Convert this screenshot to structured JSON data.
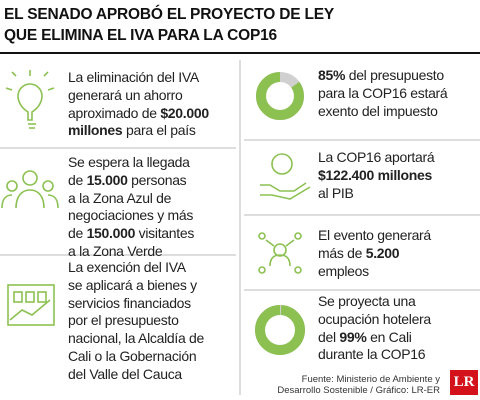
{
  "title": [
    "EL SENADO APROBÓ EL PROYECTO DE LEY",
    "QUE ELIMINA EL IVA PARA LA COP16"
  ],
  "left": [
    {
      "lines": [
        [
          {
            "text": "La eliminación del IVA"
          }
        ],
        [
          {
            "text": "generará un ahorro"
          }
        ],
        [
          {
            "text": "aproximado de "
          },
          {
            "text": "$20.000",
            "bold": true
          }
        ],
        [
          {
            "text": "millones",
            "bold": true
          },
          {
            "text": " para el país"
          }
        ]
      ]
    },
    {
      "lines": [
        [
          {
            "text": "Se espera la llegada"
          }
        ],
        [
          {
            "text": "de "
          },
          {
            "text": "15.000",
            "bold": true
          },
          {
            "text": " personas"
          }
        ],
        [
          {
            "text": "a la Zona Azul de"
          }
        ],
        [
          {
            "text": "negociaciones y más"
          }
        ],
        [
          {
            "text": "de "
          },
          {
            "text": "150.000",
            "bold": true
          },
          {
            "text": " visitantes"
          }
        ],
        [
          {
            "text": "a la Zona Verde"
          }
        ]
      ]
    },
    {
      "lines": [
        [
          {
            "text": "La exención del IVA"
          }
        ],
        [
          {
            "text": "se aplicará a bienes y"
          }
        ],
        [
          {
            "text": "servicios financiados"
          }
        ],
        [
          {
            "text": "por el presupuesto"
          }
        ],
        [
          {
            "text": "nacional, la Alcaldía de"
          }
        ],
        [
          {
            "text": "Cali o la Gobernación"
          }
        ],
        [
          {
            "text": "del Valle del Cauca"
          }
        ]
      ]
    }
  ],
  "right": [
    {
      "gauge_percent": 85,
      "lines": [
        [
          {
            "text": "85%",
            "bold": true
          },
          {
            "text": " del presupuesto"
          }
        ],
        [
          {
            "text": "para la COP16 estará"
          }
        ],
        [
          {
            "text": "exento del impuesto"
          }
        ]
      ]
    },
    {
      "lines": [
        [
          {
            "text": "La COP16 aportará"
          }
        ],
        [
          {
            "text": "$122.400 millones",
            "bold": true
          }
        ],
        [
          {
            "text": "al PIB"
          }
        ]
      ]
    },
    {
      "lines": [
        [
          {
            "text": "El evento generará"
          }
        ],
        [
          {
            "text": "más de "
          },
          {
            "text": "5.200",
            "bold": true
          }
        ],
        [
          {
            "text": "empleos"
          }
        ]
      ]
    },
    {
      "gauge_percent": 99,
      "lines": [
        [
          {
            "text": "Se proyecta una"
          }
        ],
        [
          {
            "text": "ocupación hotelera"
          }
        ],
        [
          {
            "text": "del "
          },
          {
            "text": "99%",
            "bold": true
          },
          {
            "text": " en Cali"
          }
        ],
        [
          {
            "text": "durante la COP16"
          }
        ]
      ]
    }
  ],
  "source": [
    "Fuente: Ministerio de Ambiente y",
    "Desarrollo Sostenible / Gráfico: LR-ER"
  ],
  "logo": "LR"
}
